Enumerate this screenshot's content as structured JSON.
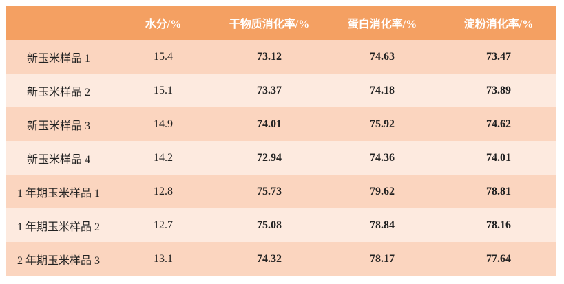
{
  "table": {
    "header": [
      "水分/%",
      "干物质消化率/%",
      "蛋白消化率/%",
      "淀粉消化率/%"
    ],
    "rows": [
      [
        "新玉米样品 1",
        "15.4",
        "73.12",
        "74.63",
        "73.47"
      ],
      [
        "新玉米样品 2",
        "15.1",
        "73.37",
        "74.18",
        "73.89"
      ],
      [
        "新玉米样品 3",
        "14.9",
        "74.01",
        "75.92",
        "74.62"
      ],
      [
        "新玉米样品 4",
        "14.2",
        "72.94",
        "74.36",
        "74.01"
      ],
      [
        "1 年期玉米样品 1",
        "12.8",
        "75.73",
        "79.62",
        "78.81"
      ],
      [
        "1 年期玉米样品 2",
        "12.7",
        "75.08",
        "78.84",
        "78.16"
      ],
      [
        "2 年期玉米样品 3",
        "13.1",
        "74.32",
        "78.17",
        "77.64"
      ]
    ]
  }
}
